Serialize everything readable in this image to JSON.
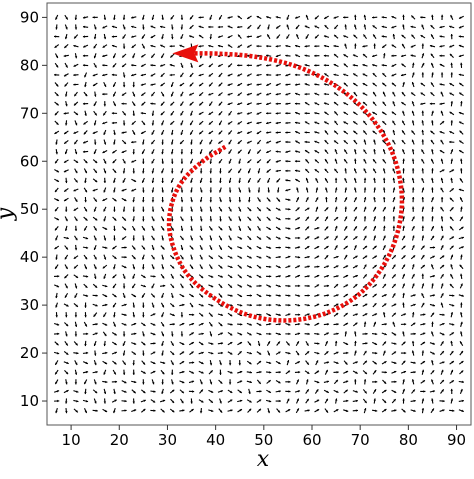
{
  "chart_data": {
    "type": "quiver",
    "title": "",
    "xlabel": "x",
    "ylabel": "y",
    "xlim": [
      5,
      93
    ],
    "ylim": [
      5,
      93
    ],
    "xticks": [
      "10",
      "20",
      "30",
      "40",
      "50",
      "60",
      "70",
      "80",
      "90"
    ],
    "yticks": [
      "10",
      "20",
      "30",
      "40",
      "50",
      "60",
      "70",
      "80",
      "90"
    ],
    "grid": false,
    "field": {
      "grid_spacing": 2,
      "x_range": [
        7,
        91
      ],
      "y_range": [
        8,
        91
      ],
      "vortex_center": [
        55,
        54
      ],
      "description_free": true
    },
    "trajectory": {
      "color": "#e8100c",
      "style": "dashed",
      "points": [
        [
          42,
          63
        ],
        [
          37,
          60
        ],
        [
          32,
          55
        ],
        [
          30,
          48
        ],
        [
          31,
          42
        ],
        [
          34,
          36
        ],
        [
          40,
          31
        ],
        [
          47,
          27.5
        ],
        [
          55,
          26.5
        ],
        [
          63,
          28
        ],
        [
          70,
          32
        ],
        [
          75,
          38
        ],
        [
          78,
          45
        ],
        [
          79,
          53
        ],
        [
          77,
          62
        ],
        [
          72,
          70
        ],
        [
          65,
          76
        ],
        [
          57,
          80
        ],
        [
          48,
          82
        ],
        [
          40,
          82.5
        ],
        [
          35,
          82.5
        ]
      ],
      "arrow_head_at": [
        36,
        82.5
      ]
    },
    "colors": {
      "arrows": "#000000",
      "trajectory": "#e8100c",
      "frame": "#555555"
    }
  }
}
